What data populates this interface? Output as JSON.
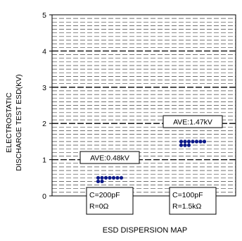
{
  "chart_data": {
    "type": "scatter",
    "title": "",
    "xlabel": "ESD DISPERSION MAP",
    "ylabel_lines": [
      "ELECTROSTATIC",
      "DISCHARGE TEST ESD(KV)"
    ],
    "ylim": [
      0,
      5
    ],
    "yticks": [
      "0",
      "1",
      "2",
      "3",
      "4",
      "5"
    ],
    "grid": true,
    "series": [
      {
        "condition_lines": [
          "C=200pF",
          "R=0Ω"
        ],
        "average_label": "AVE:0.48kV",
        "average": 0.48,
        "color": "#0d1a8a",
        "points": [
          {
            "x": 0,
            "y": 0.5
          },
          {
            "x": 1,
            "y": 0.5
          },
          {
            "x": 2,
            "y": 0.5
          },
          {
            "x": 3,
            "y": 0.5
          },
          {
            "x": 4,
            "y": 0.5
          },
          {
            "x": 5,
            "y": 0.5
          },
          {
            "x": 6,
            "y": 0.5
          },
          {
            "x": 0,
            "y": 0.4
          },
          {
            "x": 1,
            "y": 0.4
          }
        ]
      },
      {
        "condition_lines": [
          "C=100pF",
          "R=1.5kΩ"
        ],
        "average_label": "AVE:1.47kV",
        "average": 1.47,
        "color": "#0d1a8a",
        "points": [
          {
            "x": 0,
            "y": 1.5
          },
          {
            "x": 1,
            "y": 1.5
          },
          {
            "x": 2,
            "y": 1.5
          },
          {
            "x": 3,
            "y": 1.5
          },
          {
            "x": 4,
            "y": 1.5
          },
          {
            "x": 5,
            "y": 1.5
          },
          {
            "x": 6,
            "y": 1.5
          },
          {
            "x": 0,
            "y": 1.4
          },
          {
            "x": 1,
            "y": 1.4
          },
          {
            "x": 2,
            "y": 1.4
          }
        ]
      }
    ]
  }
}
